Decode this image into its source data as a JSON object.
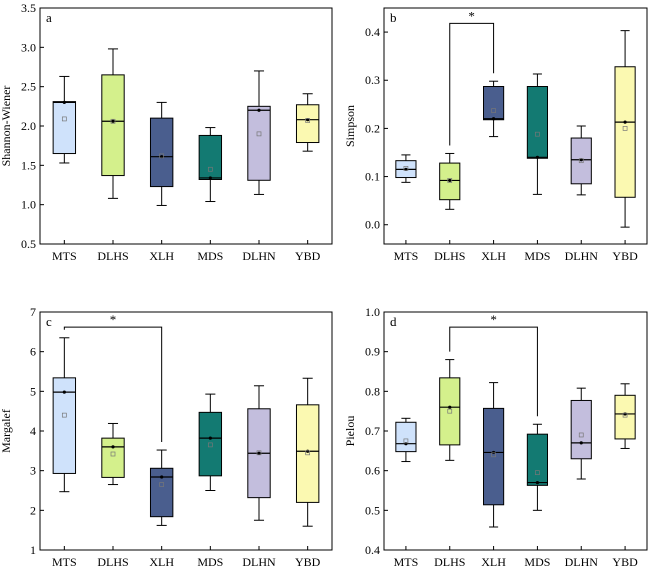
{
  "categories": [
    "MTS",
    "DLHS",
    "XLH",
    "MDS",
    "DLHN",
    "YBD"
  ],
  "colors": [
    "#cfe2fb",
    "#d4f08c",
    "#4a5e8e",
    "#137a72",
    "#c3bedd",
    "#fbf9b1"
  ],
  "chart_data": [
    {
      "type": "box",
      "panel_label": "a",
      "ylabel": "Shannon-Wiener",
      "ylim": [
        0.5,
        3.5
      ],
      "yticks": [
        "0.5",
        "1.0",
        "1.5",
        "2.0",
        "2.5",
        "3.0",
        "3.5"
      ],
      "categories": [
        "MTS",
        "DLHS",
        "XLH",
        "MDS",
        "DLHN",
        "YBD"
      ],
      "boxes": [
        {
          "min": 1.53,
          "q1": 1.65,
          "median": 2.3,
          "q3": 2.31,
          "max": 2.63,
          "mean": 2.09
        },
        {
          "min": 1.08,
          "q1": 1.37,
          "median": 2.06,
          "q3": 2.65,
          "max": 2.98,
          "mean": 2.06
        },
        {
          "min": 0.99,
          "q1": 1.23,
          "median": 1.61,
          "q3": 2.1,
          "max": 2.3,
          "mean": 1.62
        },
        {
          "min": 1.04,
          "q1": 1.32,
          "median": 1.34,
          "q3": 1.88,
          "max": 1.98,
          "mean": 1.45
        },
        {
          "min": 1.13,
          "q1": 1.31,
          "median": 2.2,
          "q3": 2.25,
          "max": 2.7,
          "mean": 1.9
        },
        {
          "min": 1.68,
          "q1": 1.79,
          "median": 2.08,
          "q3": 2.27,
          "max": 2.41,
          "mean": 2.07
        }
      ],
      "significance": []
    },
    {
      "type": "box",
      "panel_label": "b",
      "ylabel": "Simpson",
      "ylim": [
        -0.04,
        0.45
      ],
      "yticks": [
        "0.0",
        "0.1",
        "0.2",
        "0.3",
        "0.4"
      ],
      "categories": [
        "MTS",
        "DLHS",
        "XLH",
        "MDS",
        "DLHN",
        "YBD"
      ],
      "boxes": [
        {
          "min": 0.088,
          "q1": 0.098,
          "median": 0.115,
          "q3": 0.133,
          "max": 0.145,
          "mean": 0.117
        },
        {
          "min": 0.032,
          "q1": 0.052,
          "median": 0.092,
          "q3": 0.128,
          "max": 0.148,
          "mean": 0.092
        },
        {
          "min": 0.183,
          "q1": 0.218,
          "median": 0.22,
          "q3": 0.287,
          "max": 0.298,
          "mean": 0.237
        },
        {
          "min": 0.063,
          "q1": 0.138,
          "median": 0.14,
          "q3": 0.287,
          "max": 0.313,
          "mean": 0.188
        },
        {
          "min": 0.062,
          "q1": 0.085,
          "median": 0.135,
          "q3": 0.18,
          "max": 0.205,
          "mean": 0.133
        },
        {
          "min": -0.005,
          "q1": 0.057,
          "median": 0.213,
          "q3": 0.328,
          "max": 0.403,
          "mean": 0.2
        }
      ],
      "significance": [
        {
          "from": 1,
          "to": 2,
          "label": "*",
          "level": 0.418
        }
      ]
    },
    {
      "type": "box",
      "panel_label": "c",
      "ylabel": "Margalef",
      "ylim": [
        1,
        7
      ],
      "yticks": [
        "1",
        "2",
        "3",
        "4",
        "5",
        "6",
        "7"
      ],
      "categories": [
        "MTS",
        "DLHS",
        "XLH",
        "MDS",
        "DLHN",
        "YBD"
      ],
      "boxes": [
        {
          "min": 2.47,
          "q1": 2.93,
          "median": 4.98,
          "q3": 5.34,
          "max": 6.35,
          "mean": 4.4
        },
        {
          "min": 2.65,
          "q1": 2.83,
          "median": 3.6,
          "q3": 3.82,
          "max": 4.19,
          "mean": 3.42
        },
        {
          "min": 1.62,
          "q1": 1.84,
          "median": 2.84,
          "q3": 3.06,
          "max": 3.52,
          "mean": 2.65
        },
        {
          "min": 2.5,
          "q1": 2.87,
          "median": 3.82,
          "q3": 4.47,
          "max": 4.93,
          "mean": 3.65
        },
        {
          "min": 1.75,
          "q1": 2.32,
          "median": 3.44,
          "q3": 4.56,
          "max": 5.14,
          "mean": 3.45
        },
        {
          "min": 1.6,
          "q1": 2.2,
          "median": 3.49,
          "q3": 4.66,
          "max": 5.33,
          "mean": 3.45
        }
      ],
      "significance": [
        {
          "from": 0,
          "to": 2,
          "label": "*",
          "level": 6.62
        }
      ]
    },
    {
      "type": "box",
      "panel_label": "d",
      "ylabel": "Pielou",
      "ylim": [
        0.4,
        1.0
      ],
      "yticks": [
        "0.4",
        "0.5",
        "0.6",
        "0.7",
        "0.8",
        "0.9",
        "1.0"
      ],
      "categories": [
        "MTS",
        "DLHS",
        "XLH",
        "MDS",
        "DLHN",
        "YBD"
      ],
      "boxes": [
        {
          "min": 0.623,
          "q1": 0.648,
          "median": 0.668,
          "q3": 0.722,
          "max": 0.732,
          "mean": 0.675
        },
        {
          "min": 0.626,
          "q1": 0.665,
          "median": 0.76,
          "q3": 0.834,
          "max": 0.88,
          "mean": 0.75
        },
        {
          "min": 0.458,
          "q1": 0.514,
          "median": 0.646,
          "q3": 0.757,
          "max": 0.822,
          "mean": 0.64
        },
        {
          "min": 0.5,
          "q1": 0.563,
          "median": 0.57,
          "q3": 0.692,
          "max": 0.717,
          "mean": 0.595
        },
        {
          "min": 0.579,
          "q1": 0.63,
          "median": 0.67,
          "q3": 0.777,
          "max": 0.808,
          "mean": 0.69
        },
        {
          "min": 0.656,
          "q1": 0.68,
          "median": 0.743,
          "q3": 0.79,
          "max": 0.819,
          "mean": 0.74
        }
      ],
      "significance": [
        {
          "from": 1,
          "to": 3,
          "label": "*",
          "level": 0.962
        }
      ]
    }
  ]
}
